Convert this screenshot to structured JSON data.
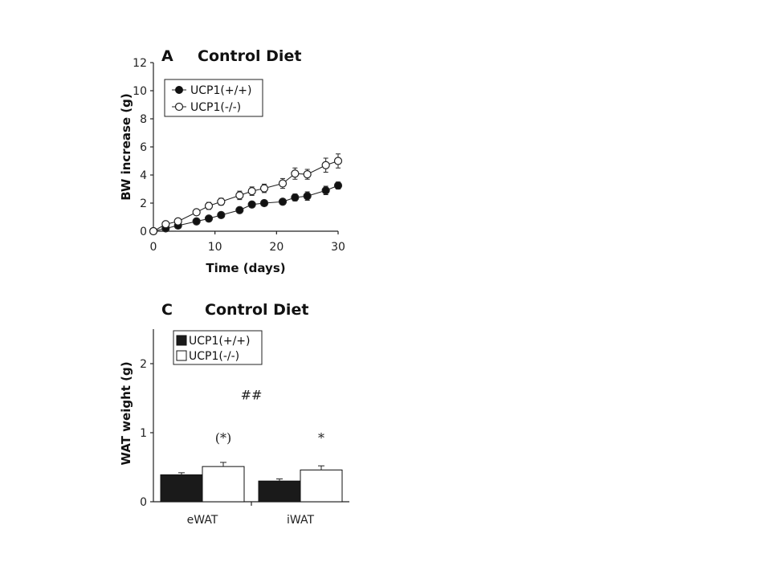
{
  "chart_data": [
    {
      "type": "line",
      "panel": "A",
      "title": "Control Diet",
      "xlabel": "Time (days)",
      "ylabel": "BW increase (g)",
      "xlim": [
        0,
        30
      ],
      "ylim": [
        0,
        12
      ],
      "xticks": [
        0,
        10,
        20,
        30
      ],
      "yticks": [
        0,
        2,
        4,
        6,
        8,
        10,
        12
      ],
      "legend_position": "top-left",
      "series": [
        {
          "name": "UCP1(+/+)",
          "marker": "filled-circle",
          "x": [
            0,
            2,
            4,
            7,
            9,
            11,
            14,
            16,
            18,
            21,
            23,
            25,
            28,
            30
          ],
          "y": [
            0,
            0.2,
            0.4,
            0.7,
            0.9,
            1.15,
            1.5,
            1.9,
            2.0,
            2.1,
            2.4,
            2.5,
            2.9,
            3.25
          ],
          "err": [
            0,
            0.05,
            0.1,
            0.15,
            0.15,
            0.15,
            0.15,
            0.2,
            0.2,
            0.2,
            0.25,
            0.3,
            0.3,
            0.25
          ]
        },
        {
          "name": "UCP1(-/-)",
          "marker": "open-circle",
          "x": [
            0,
            2,
            4,
            7,
            9,
            11,
            14,
            16,
            18,
            21,
            23,
            25,
            28,
            30
          ],
          "y": [
            0,
            0.5,
            0.7,
            1.35,
            1.8,
            2.1,
            2.55,
            2.85,
            3.05,
            3.4,
            4.1,
            4.05,
            4.7,
            5.0
          ],
          "err": [
            0,
            0.1,
            0.15,
            0.2,
            0.25,
            0.25,
            0.3,
            0.3,
            0.3,
            0.35,
            0.4,
            0.35,
            0.5,
            0.5
          ]
        }
      ]
    },
    {
      "type": "bar",
      "panel": "C",
      "title": "Control Diet",
      "xlabel": "",
      "ylabel": "WAT weight (g)",
      "ylim": [
        0,
        2.5
      ],
      "yticks": [
        0,
        1,
        2
      ],
      "categories": [
        "eWAT",
        "iWAT"
      ],
      "legend_position": "top-left",
      "series": [
        {
          "name": "UCP1(+/+)",
          "color": "#1a1a1a",
          "values": [
            0.39,
            0.3
          ],
          "err": [
            0.03,
            0.03
          ]
        },
        {
          "name": "UCP1(-/-)",
          "color": "#ffffff",
          "values": [
            0.51,
            0.46
          ],
          "err": [
            0.06,
            0.06
          ]
        }
      ],
      "annotations": [
        {
          "text": "(*)",
          "category": "eWAT",
          "y": 0.93
        },
        {
          "text": "*",
          "category": "iWAT",
          "y": 0.93
        },
        {
          "text": "##",
          "category": "between",
          "y": 1.55
        }
      ]
    }
  ]
}
